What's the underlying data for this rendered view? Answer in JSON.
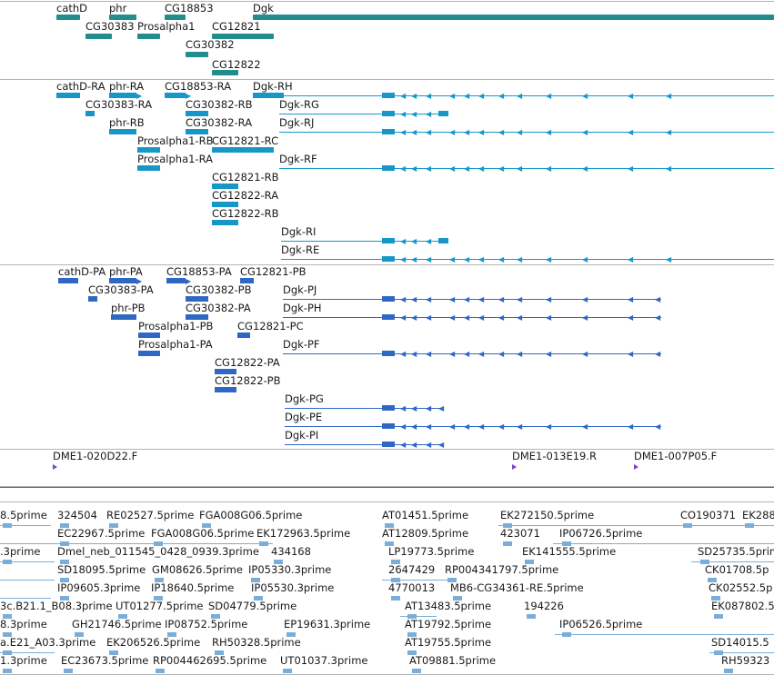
{
  "colors": {
    "gene": "#238c8c",
    "transcript": "#1797c8",
    "protein": "#2f68c4",
    "clone": "#7a44c8",
    "est": "#7aaed8",
    "divider": "#b4b4b4"
  },
  "genes": [
    "cathD",
    "phr",
    "CG18853",
    "Dgk",
    "CG30383",
    "Prosalpha1",
    "CG12821",
    "CG30382",
    "CG12822"
  ],
  "transcripts": [
    "cathD-RA",
    "phr-RA",
    "CG18853-RA",
    "Dgk-RH",
    "CG30383-RA",
    "CG30382-RB",
    "Dgk-RG",
    "phr-RB",
    "CG30382-RA",
    "Dgk-RJ",
    "Prosalpha1-RB",
    "CG12821-RC",
    "Prosalpha1-RA",
    "Dgk-RF",
    "CG12821-RB",
    "CG12822-RA",
    "CG12822-RB",
    "Dgk-RI",
    "Dgk-RE"
  ],
  "proteins": [
    "cathD-PA",
    "phr-PA",
    "CG18853-PA",
    "CG12821-PB",
    "CG30383-PA",
    "CG30382-PB",
    "Dgk-PJ",
    "Dgk-PH",
    "phr-PB",
    "CG30382-PA",
    "Prosalpha1-PB",
    "CG12821-PC",
    "Prosalpha1-PA",
    "Dgk-PF",
    "CG12822-PA",
    "CG12822-PB",
    "Dgk-PG",
    "Dgk-PE",
    "Dgk-PI"
  ],
  "clones": [
    "DME1-020D22.F",
    "DME1-013E19.R",
    "DME1-007P05.F"
  ],
  "ests": [
    "8.5prime",
    "324504",
    "RE02527.5prime",
    "FGA008G06.5prime",
    "AT01451.5prime",
    "EK272150.5prime",
    "CO190371",
    "EK288",
    "EC22967.5prime",
    "FGA008G06.5prime",
    "EK172963.5prime",
    "AT12809.5prime",
    "423071",
    "IP06726.5prime",
    ".3prime",
    "Dmel_neb_011545_0428_0939.3prime",
    "434168",
    "LP19773.5prime",
    "EK141555.5prime",
    "SD25735.5prime",
    "SD18095.5prime",
    "GM08626.5prime",
    "IP05330.3prime",
    "2647429",
    "RP004341797.5prime",
    "CK01708.5p",
    "IP09605.3prime",
    "IP18640.5prime",
    "IP05530.3prime",
    "4770013",
    "MB6-CG34361-RE.5prime",
    "CK02552.5p",
    "3c.B21.1_B08.3prime",
    "UT01277.5prime",
    "SD04779.5prime",
    "AT13483.5prime",
    "194226",
    "EK087802.5",
    "8.3prime",
    "GH21746.5prime",
    "IP08752.5prime",
    "EP19631.3prime",
    "AT19792.5prime",
    "IP06526.5prime",
    "a.E21_A03.3prime",
    "EK206526.5prime",
    "RH50328.5prime",
    "AT19755.5prime",
    "SD14015.5",
    "1.3prime",
    "EC23673.5prime",
    "RP004462695.5prime",
    "UT01037.3prime",
    "AT09881.5prime",
    "RH59323"
  ]
}
